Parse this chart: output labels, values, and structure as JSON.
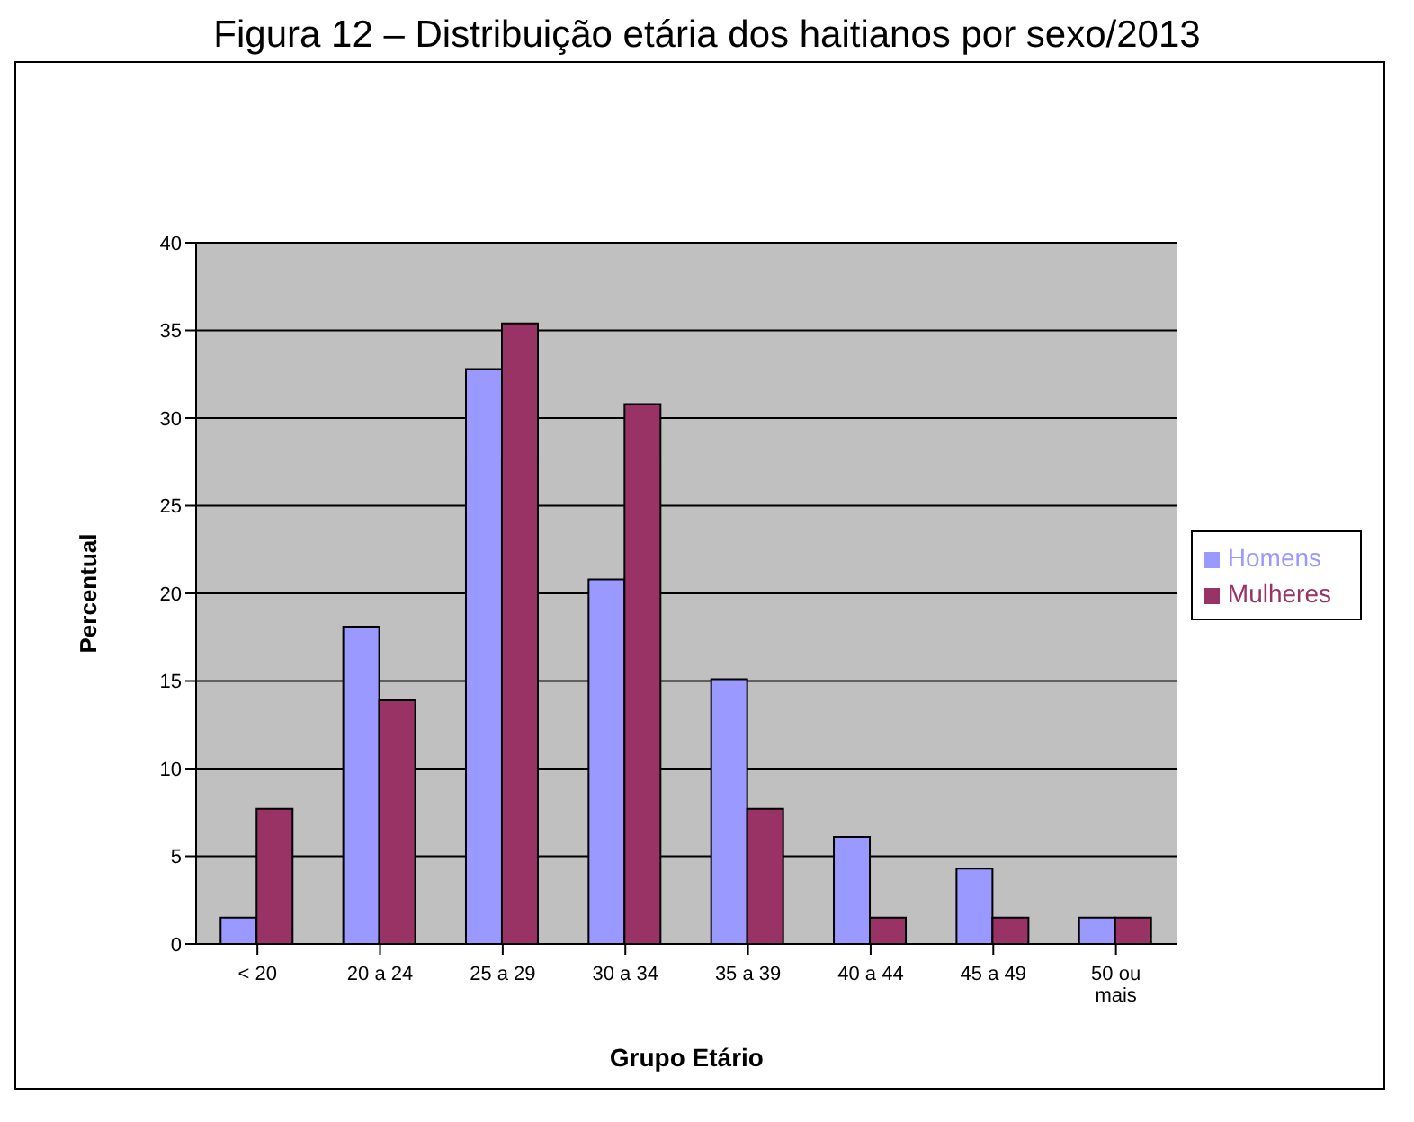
{
  "chart_data": {
    "type": "bar",
    "title": "Figura 12 – Distribuição etária dos haitianos por sexo/2013",
    "xlabel": "Grupo Etário",
    "ylabel": "Percentual",
    "categories": [
      "< 20",
      "20 a 24",
      "25 a 29",
      "30 a 34",
      "35 a 39",
      "40 a 44",
      "45 a 49",
      "50 ou mais"
    ],
    "series": [
      {
        "name": "Homens",
        "color": "#9999ff",
        "values": [
          1.5,
          18.1,
          32.8,
          20.8,
          15.1,
          6.1,
          4.3,
          1.5
        ]
      },
      {
        "name": "Mulheres",
        "color": "#993366",
        "values": [
          7.7,
          13.9,
          35.4,
          30.8,
          7.7,
          1.5,
          1.5,
          1.5
        ]
      }
    ],
    "ylim": [
      0,
      40
    ],
    "yticks": [
      0,
      5,
      10,
      15,
      20,
      25,
      30,
      35,
      40
    ],
    "grid": "y",
    "legend": "right"
  }
}
